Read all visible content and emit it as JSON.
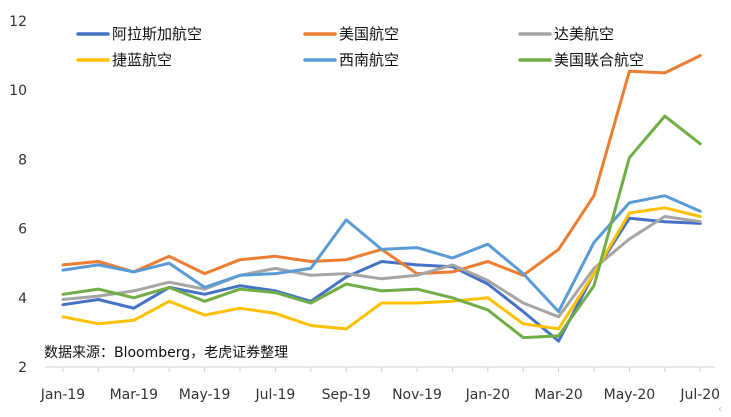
{
  "chart_data": {
    "type": "line",
    "title": "",
    "xlabel": "",
    "ylabel": "",
    "ylim": [
      2,
      12
    ],
    "yticks": [
      2,
      4,
      6,
      8,
      10,
      12
    ],
    "grid": false,
    "legend_position": "top",
    "x": [
      "Jan-19",
      "Feb-19",
      "Mar-19",
      "Apr-19",
      "May-19",
      "Jun-19",
      "Jul-19",
      "Aug-19",
      "Sep-19",
      "Oct-19",
      "Nov-19",
      "Dec-19",
      "Jan-20",
      "Feb-20",
      "Mar-20",
      "Apr-20",
      "May-20",
      "Jun-20",
      "Jul-20"
    ],
    "xtick_labels": [
      "Jan-19",
      "Mar-19",
      "May-19",
      "Jul-19",
      "Sep-19",
      "Nov-19",
      "Jan-20",
      "Mar-20",
      "May-20",
      "Jul-20"
    ],
    "series": [
      {
        "name": "阿拉斯加航空",
        "color": "#4472C4",
        "values": [
          3.8,
          3.95,
          3.7,
          4.3,
          4.1,
          4.35,
          4.2,
          3.9,
          4.6,
          5.05,
          4.95,
          4.9,
          4.4,
          3.6,
          2.75,
          4.7,
          6.3,
          6.2,
          6.15
        ]
      },
      {
        "name": "美国航空",
        "color": "#ED7D31",
        "values": [
          4.95,
          5.05,
          4.75,
          5.2,
          4.7,
          5.1,
          5.2,
          5.05,
          5.1,
          5.4,
          4.7,
          4.75,
          5.05,
          4.65,
          5.4,
          6.95,
          10.55,
          10.5,
          11.0
        ]
      },
      {
        "name": "达美航空",
        "color": "#A5A5A5",
        "values": [
          3.95,
          4.05,
          4.2,
          4.45,
          4.25,
          4.65,
          4.85,
          4.65,
          4.7,
          4.55,
          4.65,
          4.95,
          4.5,
          3.85,
          3.45,
          4.85,
          5.7,
          6.35,
          6.2
        ]
      },
      {
        "name": "捷蓝航空",
        "color": "#FFC000",
        "values": [
          3.45,
          3.25,
          3.35,
          3.9,
          3.5,
          3.7,
          3.55,
          3.2,
          3.1,
          3.85,
          3.85,
          3.9,
          4.0,
          3.25,
          3.1,
          4.7,
          6.45,
          6.6,
          6.35
        ]
      },
      {
        "name": "西南航空",
        "color": "#5B9BD5",
        "values": [
          4.8,
          4.95,
          4.75,
          5.0,
          4.3,
          4.65,
          4.7,
          4.85,
          6.25,
          5.4,
          5.45,
          5.15,
          5.55,
          4.7,
          3.6,
          5.6,
          6.75,
          6.95,
          6.5
        ]
      },
      {
        "name": "美国联合航空",
        "color": "#70AD47",
        "values": [
          4.1,
          4.25,
          4.0,
          4.3,
          3.9,
          4.25,
          4.15,
          3.85,
          4.4,
          4.2,
          4.25,
          4.0,
          3.65,
          2.85,
          2.9,
          4.35,
          8.05,
          9.25,
          8.45
        ]
      }
    ],
    "source_note": "数据来源：Bloomberg，老虎证券整理"
  }
}
